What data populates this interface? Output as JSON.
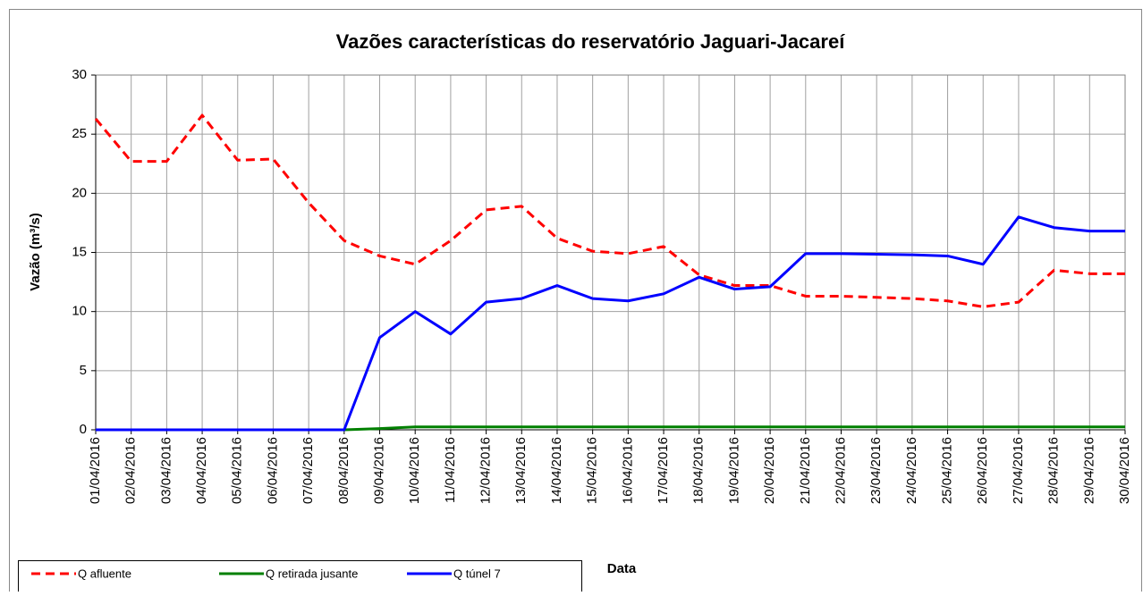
{
  "chart_data": {
    "type": "line",
    "title": "Vazões características do reservatório Jaguari-Jacareí",
    "x_label": "Data",
    "y_label": "Vazão (m³/s)",
    "categories": [
      "01/04/2016",
      "02/04/2016",
      "03/04/2016",
      "04/04/2016",
      "05/04/2016",
      "06/04/2016",
      "07/04/2016",
      "08/04/2016",
      "09/04/2016",
      "10/04/2016",
      "11/04/2016",
      "12/04/2016",
      "13/04/2016",
      "14/04/2016",
      "15/04/2016",
      "16/04/2016",
      "17/04/2016",
      "18/04/2016",
      "19/04/2016",
      "20/04/2016",
      "21/04/2016",
      "22/04/2016",
      "23/04/2016",
      "24/04/2016",
      "25/04/2016",
      "26/04/2016",
      "27/04/2016",
      "28/04/2016",
      "29/04/2016",
      "30/04/2016"
    ],
    "series": [
      {
        "name": "Q afluente",
        "color": "#ff0000",
        "style": "dashed",
        "values": [
          26.3,
          22.7,
          22.7,
          26.6,
          22.8,
          22.9,
          19.2,
          16.0,
          14.7,
          14.0,
          16.0,
          18.6,
          18.9,
          16.2,
          15.1,
          14.9,
          15.5,
          13.1,
          12.2,
          12.2,
          11.3,
          11.3,
          11.2,
          11.1,
          10.9,
          10.4,
          10.8,
          13.5,
          13.2,
          13.2
        ]
      },
      {
        "name": "Q retirada jusante",
        "color": "#008000",
        "style": "solid",
        "values": [
          0,
          0,
          0,
          0,
          0,
          0,
          0,
          0,
          0.1,
          0.25,
          0.25,
          0.25,
          0.25,
          0.25,
          0.25,
          0.25,
          0.25,
          0.25,
          0.25,
          0.25,
          0.25,
          0.25,
          0.25,
          0.25,
          0.25,
          0.25,
          0.25,
          0.25,
          0.25,
          0.25
        ]
      },
      {
        "name": "Q túnel 7",
        "color": "#0000ff",
        "style": "solid",
        "values": [
          0,
          0,
          0,
          0,
          0,
          0,
          0,
          0,
          7.8,
          10.0,
          8.1,
          10.8,
          11.1,
          12.2,
          11.1,
          10.9,
          11.5,
          12.9,
          11.9,
          12.1,
          14.9,
          14.9,
          14.85,
          14.8,
          14.7,
          14.0,
          18.0,
          17.1,
          16.8,
          16.8
        ]
      }
    ],
    "ylim": [
      0,
      30
    ],
    "yticks": [
      0,
      5,
      10,
      15,
      20,
      25,
      30
    ],
    "grid": true,
    "legend": "bottom-left"
  }
}
